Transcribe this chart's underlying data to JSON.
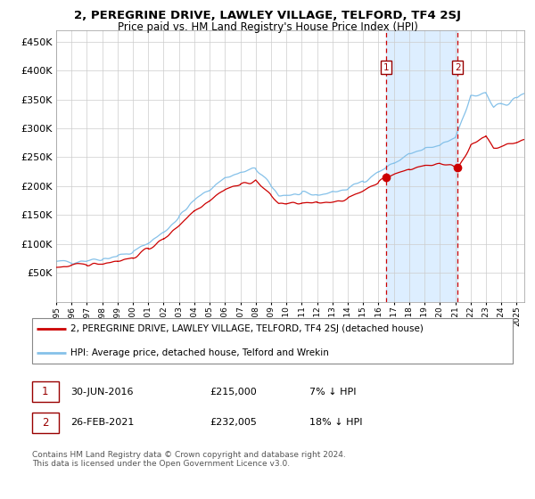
{
  "title": "2, PEREGRINE DRIVE, LAWLEY VILLAGE, TELFORD, TF4 2SJ",
  "subtitle": "Price paid vs. HM Land Registry's House Price Index (HPI)",
  "legend_line1": "2, PEREGRINE DRIVE, LAWLEY VILLAGE, TELFORD, TF4 2SJ (detached house)",
  "legend_line2": "HPI: Average price, detached house, Telford and Wrekin",
  "transaction1_label": "1",
  "transaction1_date": "30-JUN-2016",
  "transaction1_price": "£215,000",
  "transaction1_hpi": "7% ↓ HPI",
  "transaction2_label": "2",
  "transaction2_date": "26-FEB-2021",
  "transaction2_price": "£232,005",
  "transaction2_hpi": "18% ↓ HPI",
  "footer": "Contains HM Land Registry data © Crown copyright and database right 2024.\nThis data is licensed under the Open Government Licence v3.0.",
  "hpi_color": "#85c1e9",
  "price_color": "#cc0000",
  "highlight_color": "#ddeeff",
  "dashed_color": "#cc0000",
  "bg_color": "#ffffff",
  "ylim": [
    0,
    470000
  ],
  "yticks": [
    0,
    50000,
    100000,
    150000,
    200000,
    250000,
    300000,
    350000,
    400000,
    450000
  ],
  "xlim_start": 1995,
  "xlim_end": 2025.5,
  "transaction1_x": 2016.5,
  "transaction2_x": 2021.15,
  "transaction1_y": 215000,
  "transaction2_y": 232005,
  "title_fontsize": 9.5,
  "subtitle_fontsize": 8.5,
  "ylabel_fontsize": 8,
  "xlabel_fontsize": 6.5,
  "legend_fontsize": 7.5,
  "annotation_fontsize": 8,
  "footer_fontsize": 6.5
}
